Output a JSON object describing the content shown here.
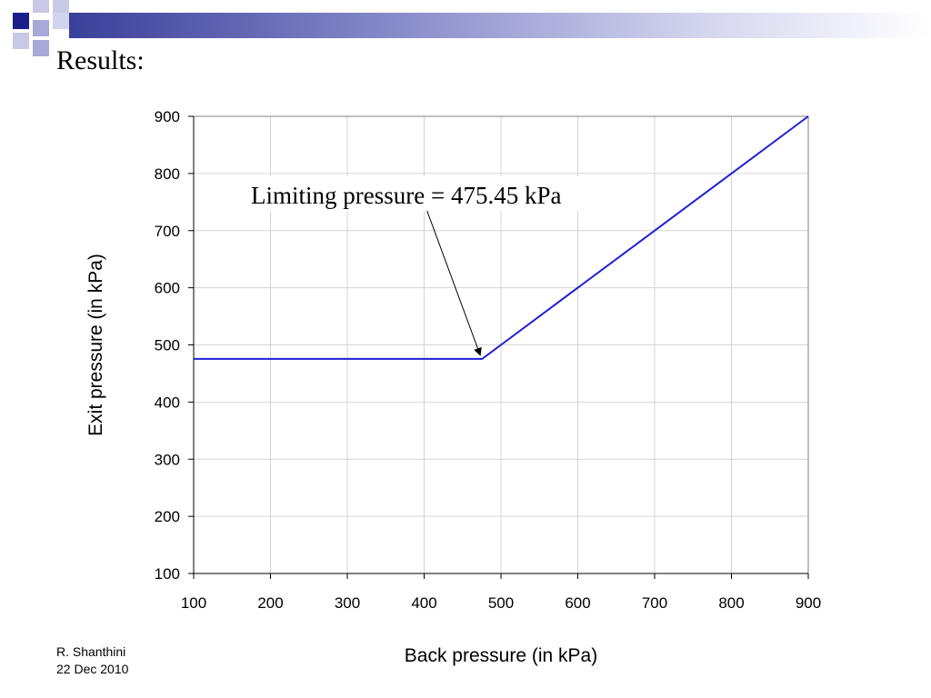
{
  "slide": {
    "title": "Results:",
    "footer_author": "R. Shanthini",
    "footer_date": "22 Dec 2010"
  },
  "colors": {
    "series": "#1f1fd6",
    "deco_dark": "#1a1f8c",
    "deco_light": "#a7a9d8"
  },
  "chart_data": {
    "type": "line",
    "xlabel": "Back pressure (in kPa)",
    "ylabel": "Exit pressure (in kPa)",
    "xlim": [
      100,
      900
    ],
    "ylim": [
      100,
      900
    ],
    "xticks": [
      "100",
      "200",
      "300",
      "400",
      "500",
      "600",
      "700",
      "800",
      "900"
    ],
    "yticks": [
      "100",
      "200",
      "300",
      "400",
      "500",
      "600",
      "700",
      "800",
      "900"
    ],
    "grid": true,
    "series": [
      {
        "x": [
          100,
          200,
          300,
          400,
          475.45,
          500,
          600,
          700,
          800,
          900
        ],
        "y": [
          475.45,
          475.45,
          475.45,
          475.45,
          475.45,
          500,
          600,
          700,
          800,
          900
        ]
      }
    ],
    "annotation": {
      "text": "Limiting pressure = 475.45 kPa",
      "point": [
        475.45,
        475.45
      ]
    }
  }
}
